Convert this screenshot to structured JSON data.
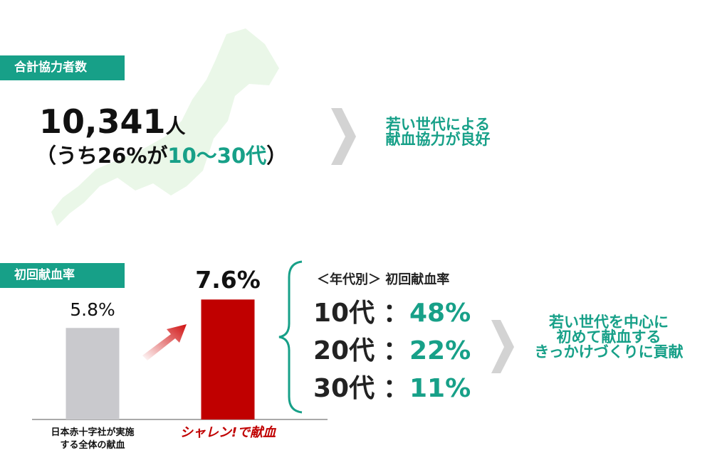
{
  "summary": {
    "label": "合計協力者数",
    "total": "10,341",
    "unit": "人",
    "breakdown_prefix": "（うち26%が",
    "breakdown_highlight": "10～30代",
    "breakdown_suffix": "）",
    "note_lines": [
      "若い世代による",
      "献血協力が良好"
    ]
  },
  "chart_data": {
    "type": "bar",
    "title": "初回献血率",
    "categories": [
      "日本赤十字社が実施\nする全体の献血",
      "シャレン!で献血"
    ],
    "values": [
      5.8,
      7.6
    ],
    "value_labels": [
      "5.8%",
      "7.6%"
    ],
    "colors": [
      "#c9c9cd",
      "#c00000"
    ]
  },
  "age_rates": {
    "title": "＜年代別＞ 初回献血率",
    "rows": [
      {
        "age": "10代",
        "separator": "：",
        "rate": "48%"
      },
      {
        "age": "20代",
        "separator": "：",
        "rate": "22%"
      },
      {
        "age": "30代",
        "separator": "：",
        "rate": "11%"
      }
    ]
  },
  "conclusion": {
    "lines": [
      "若い世代を中心に",
      "初めて献血する",
      "きっかけづくりに貢献"
    ]
  }
}
